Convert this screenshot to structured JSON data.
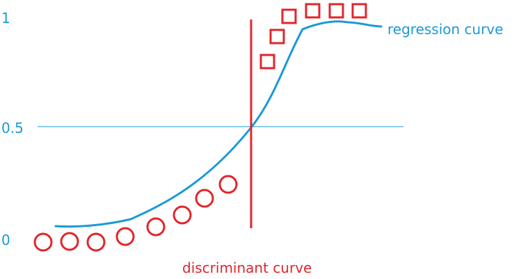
{
  "labels": {
    "y_top": "1",
    "y_mid": "0.5",
    "y_bottom": "0",
    "regression": "regression curve",
    "discriminant": "discriminant curve"
  },
  "colors": {
    "regression": "#1a9ad6",
    "discriminant": "#e0262c",
    "threshold_line": "#1a9ad6"
  },
  "shapes": {
    "class_0_marker": "circle",
    "class_1_marker": "square",
    "class_0_count": 8,
    "class_1_count": 6
  }
}
